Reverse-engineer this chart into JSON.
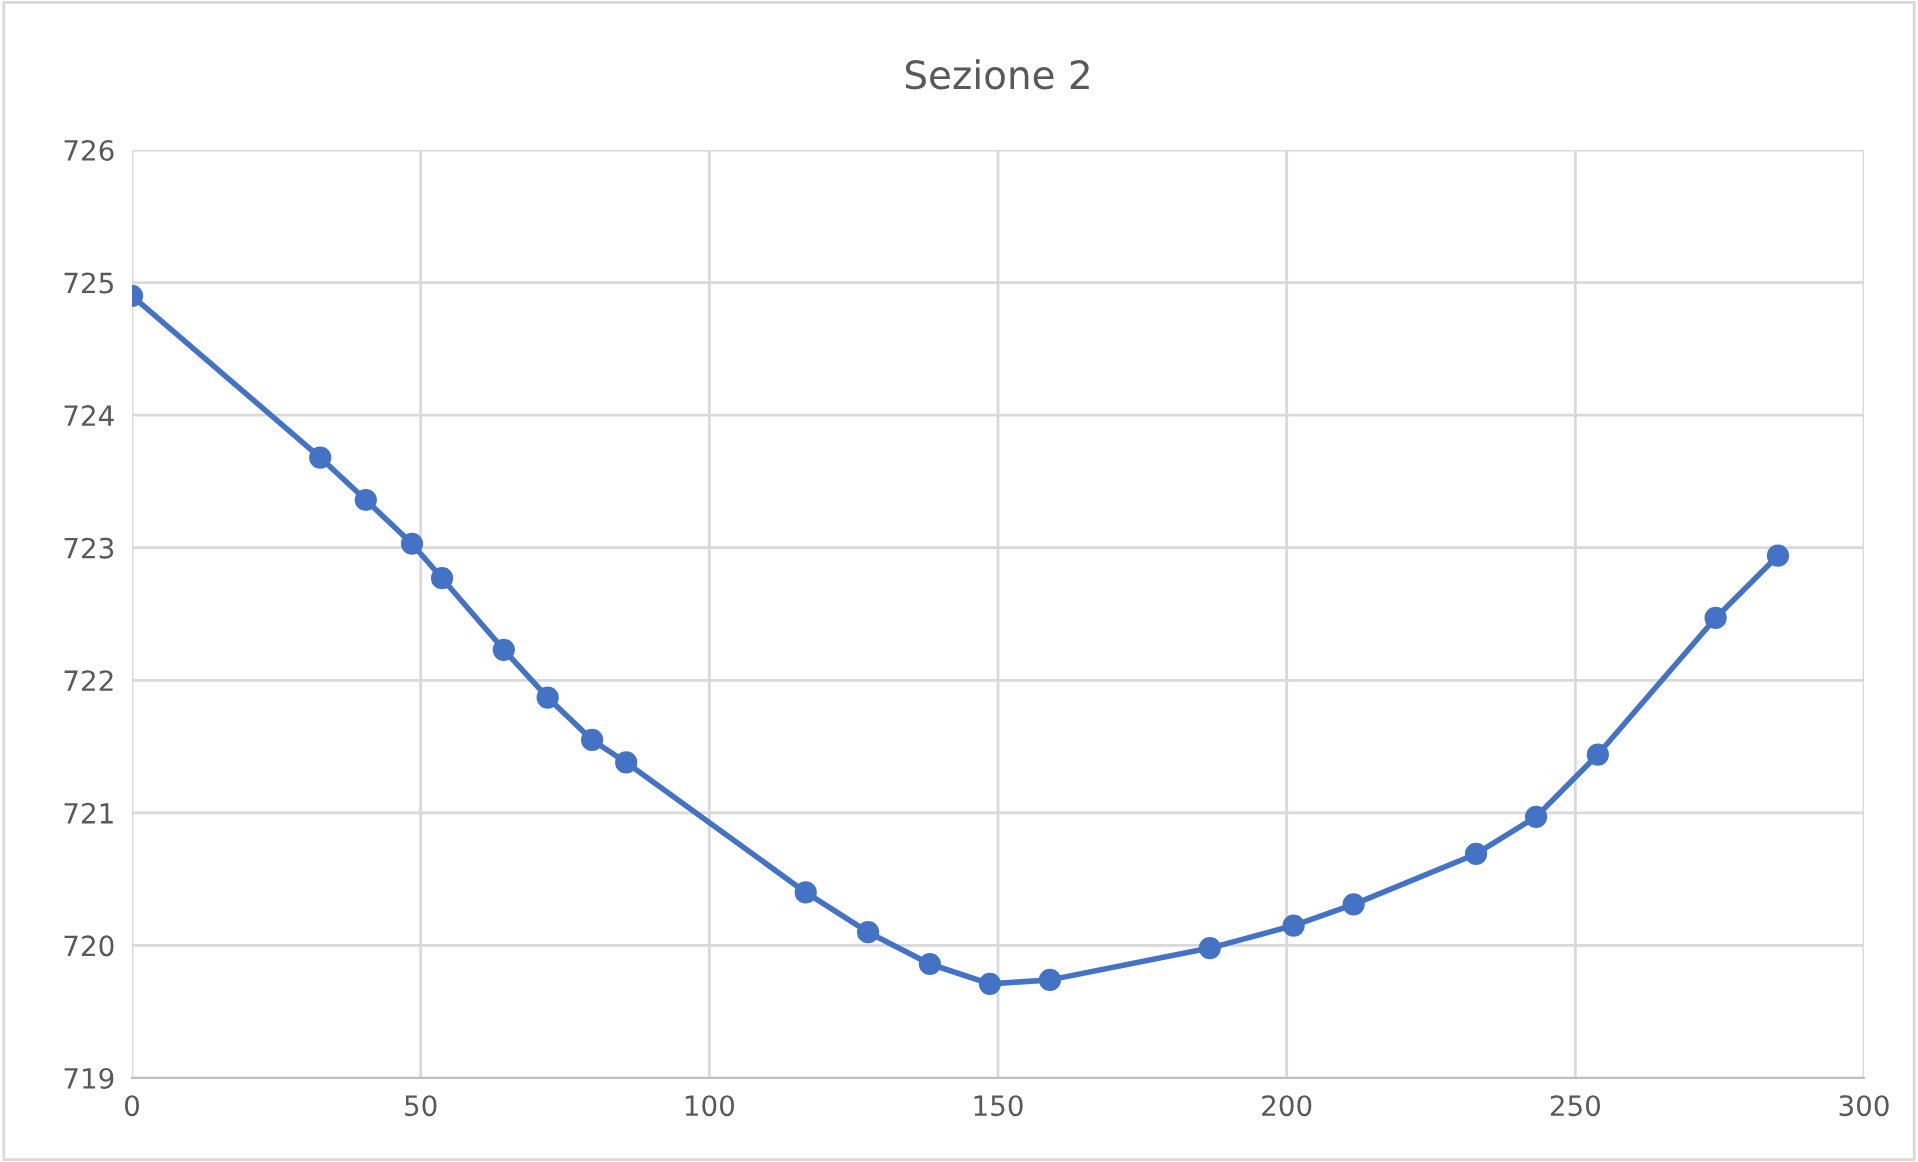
{
  "chart_data": {
    "type": "line",
    "title": "Sezione 2",
    "x": [
      0,
      32.6,
      40.5,
      48.5,
      53.7,
      64.4,
      72.0,
      79.7,
      85.6,
      116.7,
      127.5,
      138.2,
      148.6,
      159.0,
      186.7,
      201.2,
      211.6,
      232.8,
      243.2,
      253.9,
      274.3,
      285.1
    ],
    "series": [
      {
        "color": "#4472c4",
        "values": [
          724.9,
          723.68,
          723.36,
          723.03,
          722.77,
          722.23,
          721.87,
          721.55,
          721.38,
          720.4,
          720.1,
          719.86,
          719.71,
          719.74,
          719.98,
          720.15,
          720.31,
          720.69,
          720.97,
          721.44,
          722.47,
          722.94
        ]
      }
    ],
    "xlim": [
      0,
      300
    ],
    "xticks": [
      0,
      50,
      100,
      150,
      200,
      250,
      300
    ],
    "ylim": [
      719,
      726
    ],
    "yticks": [
      719,
      720,
      721,
      722,
      723,
      724,
      725,
      726
    ],
    "grid": true,
    "marker": "circle",
    "line_style": "solid",
    "legend": false
  }
}
